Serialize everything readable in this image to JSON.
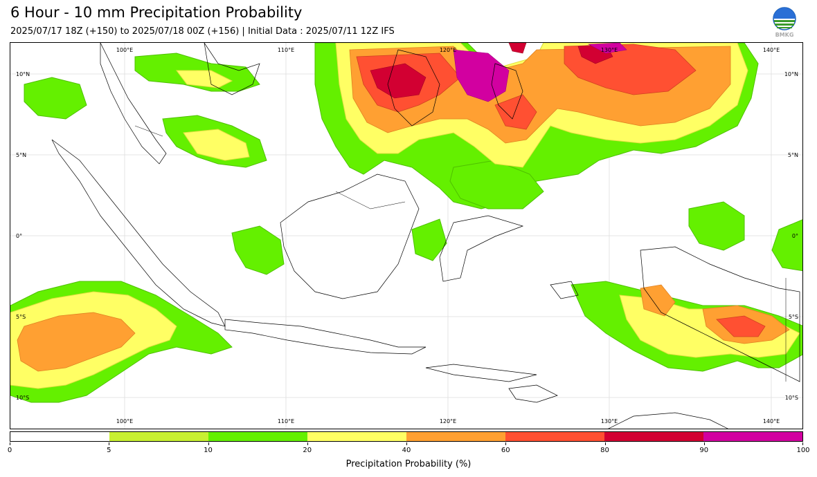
{
  "title": "6 Hour - 10 mm Precipitation Probability",
  "subtitle": "2025/07/17 18Z (+150) to 2025/07/18 00Z (+156) | Initial Data : 2025/07/11 12Z IFS",
  "logo_text": "BMKG",
  "map": {
    "longitude_labels": [
      "100°E",
      "110°E",
      "120°E",
      "130°E",
      "140°E"
    ],
    "latitude_labels": [
      "10°N",
      "5°N",
      "0°",
      "5°S",
      "10°S"
    ],
    "extent": {
      "lon": [
        93,
        142
      ],
      "lat": [
        -12,
        12
      ]
    }
  },
  "colorbar": {
    "label": "Precipitation Probability (%)",
    "ticks": [
      "0",
      "5",
      "10",
      "20",
      "40",
      "60",
      "80",
      "90",
      "100"
    ],
    "colors": [
      "#ffffff",
      "#c8f032",
      "#64f000",
      "#ffff64",
      "#ffa032",
      "#ff5032",
      "#d20032",
      "#d200a0"
    ]
  }
}
